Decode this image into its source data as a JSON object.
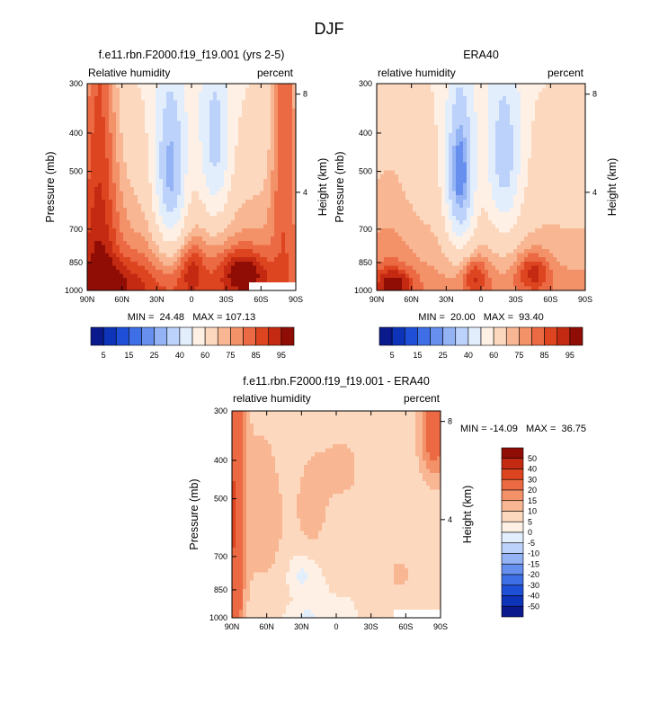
{
  "figure": {
    "title": "DJF"
  },
  "colors": {
    "rh": [
      "#0a1a8c",
      "#0d33b8",
      "#1f4fd6",
      "#3f6fe6",
      "#6790ee",
      "#93b3f5",
      "#bdd2fa",
      "#e3eefd",
      "#fef0e4",
      "#fcd8bf",
      "#f8b692",
      "#f39169",
      "#ec6a43",
      "#dd4420",
      "#c42a12",
      "#8f0d05"
    ],
    "diff": [
      "#0a1a8c",
      "#0d33b8",
      "#1f4fd6",
      "#3f6fe6",
      "#6790ee",
      "#93b3f5",
      "#bdd2fa",
      "#e3eefd",
      "#fef0e4",
      "#fcd8bf",
      "#f8b692",
      "#f39169",
      "#ec6a43",
      "#dd4420",
      "#c42a12",
      "#8f0d05"
    ]
  },
  "chart_data": [
    {
      "type": "heatmap",
      "title": "f.e11.rbn.F2000.f19_f19.001 (yrs 2-5)",
      "left_label": "Relative humidity",
      "right_label": "percent",
      "ylabel": "Pressure (mb)",
      "ylabel_right": "Height (km)",
      "x_ticks": [
        "90N",
        "60N",
        "30N",
        "0",
        "30S",
        "60S",
        "90S"
      ],
      "x_values": [
        90,
        60,
        30,
        0,
        -30,
        -60,
        -90
      ],
      "y_ticks": [
        "300",
        "400",
        "500",
        "700",
        "850",
        "1000"
      ],
      "y_values": [
        300,
        400,
        500,
        700,
        850,
        1000
      ],
      "height_ticks": [
        "8",
        "4"
      ],
      "height_values": [
        8,
        4
      ],
      "ylim": [
        300,
        1000
      ],
      "xlim": [
        90,
        -90
      ],
      "stats": "MIN =  24.48   MAX = 107.13",
      "min": 24.48,
      "max": 107.13,
      "field": "model",
      "missing": {
        "lat": [
          -50,
          -90
        ],
        "p": [
          955,
          1000
        ]
      },
      "color_scale": "rh"
    },
    {
      "type": "heatmap",
      "title": "ERA40",
      "left_label": "relative humidity",
      "right_label": "percent",
      "ylabel": "Pressure (mb)",
      "ylabel_right": "Height (km)",
      "x_ticks": [
        "90N",
        "60N",
        "30N",
        "0",
        "30S",
        "60S",
        "90S"
      ],
      "x_values": [
        90,
        60,
        30,
        0,
        -30,
        -60,
        -90
      ],
      "y_ticks": [
        "300",
        "400",
        "500",
        "700",
        "850",
        "1000"
      ],
      "y_values": [
        300,
        400,
        500,
        700,
        850,
        1000
      ],
      "height_ticks": [
        "8",
        "4"
      ],
      "height_values": [
        8,
        4
      ],
      "ylim": [
        300,
        1000
      ],
      "xlim": [
        90,
        -90
      ],
      "stats": "MIN =  20.00   MAX =  93.40",
      "min": 20.0,
      "max": 93.4,
      "field": "obs",
      "color_scale": "rh"
    },
    {
      "type": "heatmap",
      "title": "f.e11.rbn.F2000.f19_f19.001 - ERA40",
      "left_label": "relative humidity",
      "right_label": "percent",
      "ylabel": "Pressure (mb)",
      "ylabel_right": "Height (km)",
      "x_ticks": [
        "90N",
        "60N",
        "30N",
        "0",
        "30S",
        "60S",
        "90S"
      ],
      "x_values": [
        90,
        60,
        30,
        0,
        -30,
        -60,
        -90
      ],
      "y_ticks": [
        "300",
        "400",
        "500",
        "700",
        "850",
        "1000"
      ],
      "y_values": [
        300,
        400,
        500,
        700,
        850,
        1000
      ],
      "height_ticks": [
        "8",
        "4"
      ],
      "height_values": [
        8,
        4
      ],
      "ylim": [
        300,
        1000
      ],
      "xlim": [
        90,
        -90
      ],
      "stats": "MIN = -14.09   MAX =  36.75",
      "min": -14.09,
      "max": 36.75,
      "field": "diff",
      "missing": {
        "lat": [
          -50,
          -90
        ],
        "p": [
          955,
          1000
        ]
      },
      "color_scale": "diff"
    }
  ],
  "colorbars": {
    "rh": {
      "labels": [
        "5",
        "15",
        "25",
        "40",
        "60",
        "75",
        "85",
        "95"
      ]
    },
    "diff": {
      "labels": [
        "50",
        "40",
        "30",
        "20",
        "15",
        "10",
        "5",
        "0",
        "-5",
        "-10",
        "-15",
        "-20",
        "-30",
        "-40",
        "-50"
      ]
    }
  }
}
